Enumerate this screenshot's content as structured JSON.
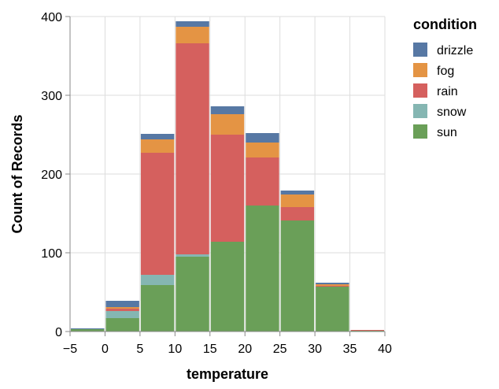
{
  "chart_data": {
    "type": "bar",
    "stacked": true,
    "xlabel": "temperature",
    "ylabel": "Count of Records",
    "xlim": [
      -5,
      40
    ],
    "ylim": [
      0,
      400
    ],
    "x_ticks": [
      -5,
      0,
      5,
      10,
      15,
      20,
      25,
      30,
      35,
      40
    ],
    "y_ticks": [
      0,
      100,
      200,
      300,
      400
    ],
    "grid": true,
    "legend_title": "condition",
    "legend_position": "right",
    "series": [
      {
        "name": "sun",
        "color": "#6a9f58",
        "values": [
          3,
          17,
          59,
          95,
          114,
          160,
          141,
          57,
          1
        ]
      },
      {
        "name": "snow",
        "color": "#85b6b2",
        "values": [
          0,
          9,
          13,
          3,
          0,
          0,
          0,
          0,
          0
        ]
      },
      {
        "name": "rain",
        "color": "#d5605e",
        "values": [
          0,
          3,
          155,
          268,
          136,
          61,
          17,
          1,
          1
        ]
      },
      {
        "name": "fog",
        "color": "#e49444",
        "values": [
          0,
          2,
          17,
          21,
          26,
          19,
          16,
          2,
          0
        ]
      },
      {
        "name": "drizzle",
        "color": "#5778a4",
        "values": [
          1,
          8,
          7,
          7,
          10,
          12,
          5,
          2,
          0
        ]
      }
    ],
    "bins": [
      [
        -5,
        0
      ],
      [
        0,
        5
      ],
      [
        5,
        10
      ],
      [
        10,
        15
      ],
      [
        15,
        20
      ],
      [
        20,
        25
      ],
      [
        25,
        30
      ],
      [
        30,
        35
      ],
      [
        35,
        40
      ]
    ],
    "legend_order": [
      "drizzle",
      "fog",
      "rain",
      "snow",
      "sun"
    ]
  }
}
